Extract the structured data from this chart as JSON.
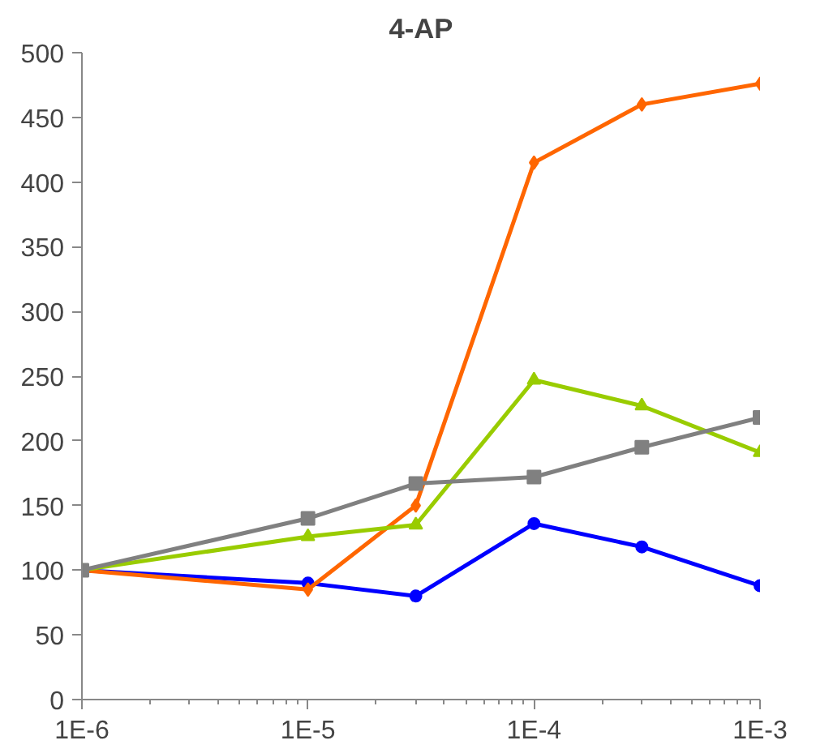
{
  "chart_data": {
    "type": "line",
    "title": "4-AP",
    "log": "x",
    "x": [
      1e-06,
      1e-05,
      3e-05,
      0.0001,
      0.0003,
      0.001
    ],
    "xlim": [
      1e-06,
      0.001
    ],
    "xticks": [
      {
        "value": 1e-06,
        "label": "1E-6"
      },
      {
        "value": 1e-05,
        "label": "1E-5"
      },
      {
        "value": 0.0001,
        "label": "1E-4"
      },
      {
        "value": 0.001,
        "label": "1E-3"
      }
    ],
    "ylim": [
      0,
      500
    ],
    "yticks": [
      0,
      50,
      100,
      150,
      200,
      250,
      300,
      350,
      400,
      450,
      500
    ],
    "grid": false,
    "series": [
      {
        "color": "#0000ff",
        "marker": "circle",
        "values": [
          100,
          90,
          80,
          136,
          118,
          88
        ]
      },
      {
        "color": "#ff6600",
        "marker": "diamond",
        "values": [
          100,
          85,
          150,
          415,
          460,
          476
        ]
      },
      {
        "color": "#99cc00",
        "marker": "triangle",
        "values": [
          100,
          126,
          135,
          247,
          227,
          191
        ]
      },
      {
        "color": "#808080",
        "marker": "square",
        "values": [
          100,
          140,
          167,
          172,
          195,
          218
        ]
      }
    ]
  }
}
